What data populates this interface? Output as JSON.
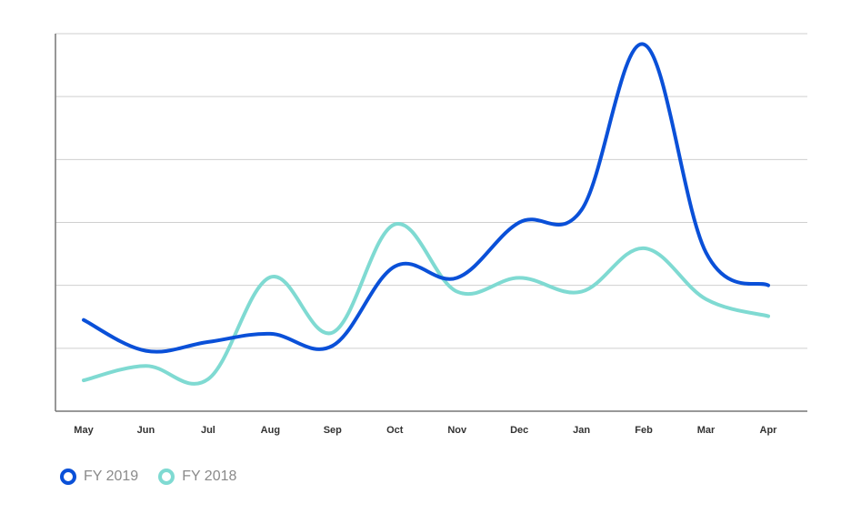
{
  "chart_data": {
    "type": "line",
    "title": "",
    "xlabel": "",
    "ylabel": "",
    "categories": [
      "May",
      "Jun",
      "Jul",
      "Aug",
      "Sep",
      "Oct",
      "Nov",
      "Dec",
      "Jan",
      "Feb",
      "Mar",
      "Apr"
    ],
    "ylim": [
      0,
      6
    ],
    "y_units": "gridline steps (no y-axis labels printed)",
    "grid": true,
    "legend_placement": "bottom-left",
    "series": [
      {
        "name": "FY 2019",
        "color": "#0a50d8",
        "values": [
          1.45,
          0.96,
          1.1,
          1.23,
          1.04,
          2.3,
          2.12,
          3.0,
          3.2,
          5.83,
          2.52,
          2.0
        ]
      },
      {
        "name": "FY 2018",
        "color": "#7fdad2",
        "values": [
          0.49,
          0.72,
          0.51,
          2.13,
          1.25,
          2.97,
          1.9,
          2.12,
          1.9,
          2.59,
          1.78,
          1.51
        ]
      }
    ]
  }
}
